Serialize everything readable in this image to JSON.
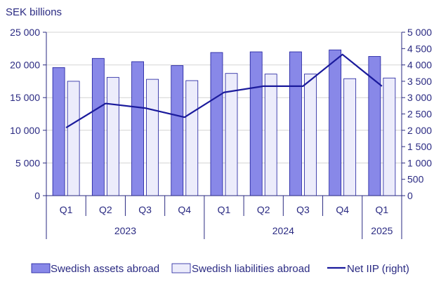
{
  "chart_data": {
    "type": "bar",
    "unit_label": "SEK billions",
    "categories": [
      "Q1",
      "Q2",
      "Q3",
      "Q4",
      "Q1",
      "Q2",
      "Q3",
      "Q4",
      "Q1"
    ],
    "years": [
      {
        "label": "2023",
        "quarters": 4
      },
      {
        "label": "2024",
        "quarters": 4
      },
      {
        "label": "2025",
        "quarters": 1
      }
    ],
    "series": [
      {
        "name": "Swedish assets abroad",
        "kind": "bar",
        "axis": "left",
        "color": "#8888e8",
        "values": [
          19600,
          21000,
          20500,
          19900,
          21900,
          22000,
          22000,
          22300,
          21300
        ]
      },
      {
        "name": "Swedish liabilities abroad",
        "kind": "bar",
        "axis": "left",
        "color": "#ececfb",
        "values": [
          17500,
          18100,
          17800,
          17600,
          18700,
          18600,
          18600,
          17900,
          18000
        ]
      },
      {
        "name": "Net IIP (right)",
        "kind": "line",
        "axis": "right",
        "color": "#1a1a9c",
        "values": [
          2080,
          2820,
          2680,
          2400,
          3160,
          3350,
          3350,
          4320,
          3350
        ]
      }
    ],
    "y_left": {
      "min": 0,
      "max": 25000,
      "step": 5000,
      "tick_labels": [
        "0",
        "5 000",
        "10 000",
        "15 000",
        "20 000",
        "25 000"
      ]
    },
    "y_right": {
      "min": 0,
      "max": 5000,
      "step": 500,
      "tick_labels": [
        "0",
        "500",
        "1 000",
        "1 500",
        "2 000",
        "2 500",
        "3 000",
        "3 500",
        "4 000",
        "4 500",
        "5 000"
      ]
    },
    "grid": true,
    "legend_position": "bottom"
  }
}
